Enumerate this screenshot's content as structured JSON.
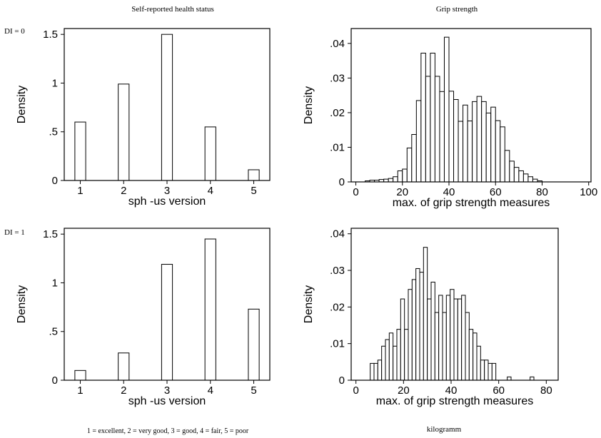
{
  "column_titles": {
    "left": "Self-reported health status",
    "right": "Grip strength"
  },
  "row_labels": [
    "DI = 0",
    "DI = 1"
  ],
  "footnotes": {
    "left": "1 = excellent, 2 = very good, 3 = good, 4 = fair, 5 = poor",
    "right": "kilogramm"
  },
  "chart_data": [
    {
      "type": "bar",
      "id": "health-di0",
      "xlabel": "sph -us version",
      "ylabel": "Density",
      "categories": [
        "1",
        "2",
        "3",
        "4",
        "5"
      ],
      "values": [
        0.6,
        0.99,
        1.5,
        0.55,
        0.11
      ],
      "ylim": [
        0,
        1.56
      ],
      "yticks": [
        0,
        0.5,
        1,
        1.5
      ],
      "ytick_labels": [
        "0",
        ".5",
        "1",
        "1.5"
      ],
      "grid": false
    },
    {
      "type": "bar",
      "id": "grip-di0",
      "xlabel": "max. of grip strength measures",
      "ylabel": "Density",
      "bins_start": 0,
      "bin_width": 2,
      "values": [
        0,
        0,
        0.0003,
        0.0005,
        0.0005,
        0.0007,
        0.0008,
        0.001,
        0.0015,
        0.0032,
        0.0037,
        0.0098,
        0.0137,
        0.0235,
        0.0372,
        0.0305,
        0.0372,
        0.0305,
        0.0261,
        0.0418,
        0.0262,
        0.0238,
        0.0175,
        0.0222,
        0.0176,
        0.0232,
        0.0247,
        0.0232,
        0.0199,
        0.0216,
        0.0177,
        0.0159,
        0.0091,
        0.006,
        0.0042,
        0.0032,
        0.0023,
        0.0015,
        0.0008,
        0.0003
      ],
      "xlim": [
        -2,
        101
      ],
      "ylim": [
        0,
        0.0443
      ],
      "xticks": [
        0,
        20,
        40,
        60,
        80,
        100
      ],
      "yticks": [
        0,
        0.01,
        0.02,
        0.03,
        0.04
      ],
      "ytick_labels": [
        "0",
        ".01",
        ".02",
        ".03",
        ".04"
      ],
      "grid": false
    },
    {
      "type": "bar",
      "id": "health-di1",
      "xlabel": "sph -us version",
      "ylabel": "Density",
      "categories": [
        "1",
        "2",
        "3",
        "4",
        "5"
      ],
      "values": [
        0.1,
        0.28,
        1.19,
        1.45,
        0.73
      ],
      "ylim": [
        0,
        1.56
      ],
      "yticks": [
        0,
        0.5,
        1,
        1.5
      ],
      "ytick_labels": [
        "0",
        ".5",
        "1",
        "1.5"
      ],
      "grid": false
    },
    {
      "type": "bar",
      "id": "grip-di1",
      "xlabel": "max. of grip strength measures",
      "ylabel": "Density",
      "bins_start": 6,
      "bin_width": 1.6,
      "values": [
        0.0046,
        0.0046,
        0.0055,
        0.0093,
        0.0111,
        0.0129,
        0.0093,
        0.0139,
        0.0222,
        0.0139,
        0.0248,
        0.0275,
        0.0305,
        0.0295,
        0.0363,
        0.0222,
        0.0268,
        0.0185,
        0.0232,
        0.0185,
        0.0232,
        0.0248,
        0.0222,
        0.0222,
        0.0232,
        0.0185,
        0.0139,
        0.0129,
        0.0093,
        0.0055,
        0.0055,
        0.0046,
        0.0046,
        0,
        0,
        0,
        0.0009,
        0,
        0,
        0,
        0,
        0,
        0.0009
      ],
      "xlim": [
        -2,
        85
      ],
      "ylim": [
        0,
        0.0415
      ],
      "xticks": [
        0,
        20,
        40,
        60,
        80
      ],
      "yticks": [
        0,
        0.01,
        0.02,
        0.03,
        0.04
      ],
      "ytick_labels": [
        "0",
        ".01",
        ".02",
        ".03",
        ".04"
      ],
      "grid": false
    }
  ]
}
